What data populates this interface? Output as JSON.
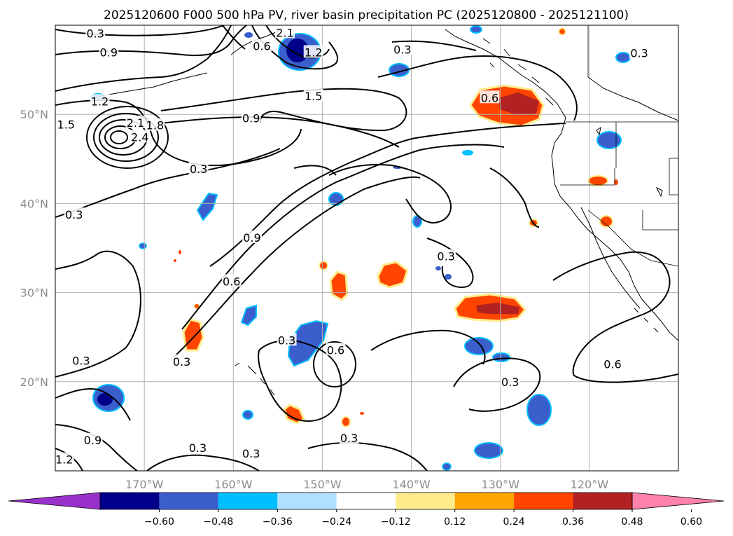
{
  "title": "2025120600 F000 500 hPa PV, river basin precipitation PC (2025120800 - 2025121100)",
  "map": {
    "lon_range": [
      -180,
      -110
    ],
    "lat_range": [
      10,
      60
    ],
    "lat_ticks": [
      {
        "value": 20,
        "label": "20°N"
      },
      {
        "value": 30,
        "label": "30°N"
      },
      {
        "value": 40,
        "label": "40°N"
      },
      {
        "value": 50,
        "label": "50°N"
      }
    ],
    "lon_ticks": [
      {
        "value": -170,
        "label": "170°W"
      },
      {
        "value": -160,
        "label": "160°W"
      },
      {
        "value": -150,
        "label": "150°W"
      },
      {
        "value": -140,
        "label": "140°W"
      },
      {
        "value": -130,
        "label": "130°W"
      },
      {
        "value": -120,
        "label": "120°W"
      }
    ],
    "contour_labels": [
      {
        "text": "0.3",
        "lon": -175.5,
        "lat": 59.0
      },
      {
        "text": "0.9",
        "lon": -174.0,
        "lat": 56.9
      },
      {
        "text": "1.2",
        "lon": -175.0,
        "lat": 51.4
      },
      {
        "text": "1.5",
        "lon": -178.8,
        "lat": 48.8
      },
      {
        "text": "2.1",
        "lon": -171.0,
        "lat": 49.0
      },
      {
        "text": "1.8",
        "lon": -168.8,
        "lat": 48.7
      },
      {
        "text": "2.4",
        "lon": -170.5,
        "lat": 47.4
      },
      {
        "text": "0.6",
        "lon": -156.8,
        "lat": 57.6
      },
      {
        "text": "2.1",
        "lon": -154.2,
        "lat": 59.1
      },
      {
        "text": "1.2",
        "lon": -151.0,
        "lat": 56.9
      },
      {
        "text": "1.5",
        "lon": -151.0,
        "lat": 52.0
      },
      {
        "text": "0.9",
        "lon": -158.0,
        "lat": 49.5
      },
      {
        "text": "0.3",
        "lon": -163.9,
        "lat": 43.8
      },
      {
        "text": "0.3",
        "lon": -177.9,
        "lat": 38.7
      },
      {
        "text": "0.9",
        "lon": -157.9,
        "lat": 36.1
      },
      {
        "text": "0.6",
        "lon": -160.2,
        "lat": 31.2
      },
      {
        "text": "0.3",
        "lon": -141.0,
        "lat": 57.2
      },
      {
        "text": "0.6",
        "lon": -131.2,
        "lat": 51.8
      },
      {
        "text": "0.3",
        "lon": -114.4,
        "lat": 56.8
      },
      {
        "text": "0.3",
        "lon": -136.1,
        "lat": 34.0
      },
      {
        "text": "0.3",
        "lon": -154.0,
        "lat": 24.6
      },
      {
        "text": "0.6",
        "lon": -148.5,
        "lat": 23.5
      },
      {
        "text": "0.3",
        "lon": -177.1,
        "lat": 22.3
      },
      {
        "text": "0.3",
        "lon": -165.8,
        "lat": 22.2
      },
      {
        "text": "0.6",
        "lon": -117.4,
        "lat": 21.9
      },
      {
        "text": "0.3",
        "lon": -128.9,
        "lat": 19.9
      },
      {
        "text": "0.9",
        "lon": -175.8,
        "lat": 13.4
      },
      {
        "text": "1.2",
        "lon": -179.0,
        "lat": 11.2
      },
      {
        "text": "0.3",
        "lon": -164.0,
        "lat": 12.5
      },
      {
        "text": "0.3",
        "lon": -158.0,
        "lat": 11.9
      },
      {
        "text": "0.3",
        "lon": -147.0,
        "lat": 13.6
      }
    ]
  },
  "colorbar": {
    "colors": [
      "#9932cc",
      "#00008b",
      "#3a5fcd",
      "#00bfff",
      "#b0e2ff",
      "#ffffff",
      "#ffec8b",
      "#ffa500",
      "#ff4500",
      "#b22222",
      "#ff82ab"
    ],
    "tick_labels": [
      "−0.60",
      "−0.48",
      "−0.36",
      "−0.24",
      "−0.12",
      "0.12",
      "0.24",
      "0.36",
      "0.48",
      "0.60"
    ]
  }
}
